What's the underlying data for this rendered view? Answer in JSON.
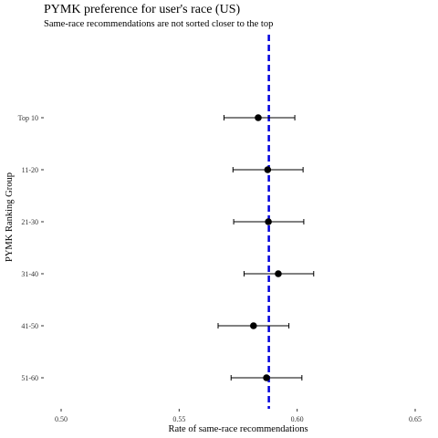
{
  "chart_data": {
    "type": "scatter",
    "title": "PYMK preference for user's race (US)",
    "subtitle": "Same-race recommendations are not sorted closer to the top",
    "xlabel": "Rate of same-race recommendations",
    "ylabel": "PYMK Ranking Group",
    "xlim": [
      0.5,
      0.65
    ],
    "xticks": [
      0.5,
      0.55,
      0.6,
      0.65
    ],
    "xtick_labels": [
      "0.50",
      "0.55",
      "0.60",
      "0.65"
    ],
    "categories": [
      "Top 10",
      "11-20",
      "21-30",
      "31-40",
      "41-50",
      "51-60"
    ],
    "series": [
      {
        "estimates": [
          0.5835,
          0.5875,
          0.5878,
          0.592,
          0.5815,
          0.587
        ],
        "ci_low": [
          0.569,
          0.5728,
          0.5731,
          0.5775,
          0.5665,
          0.572
        ],
        "ci_high": [
          0.599,
          0.6025,
          0.6028,
          0.607,
          0.5965,
          0.602
        ],
        "color": "#000000"
      }
    ],
    "reference_line": {
      "x": 0.588,
      "color": "#0000dd",
      "style": "dashed"
    },
    "grid": false
  }
}
